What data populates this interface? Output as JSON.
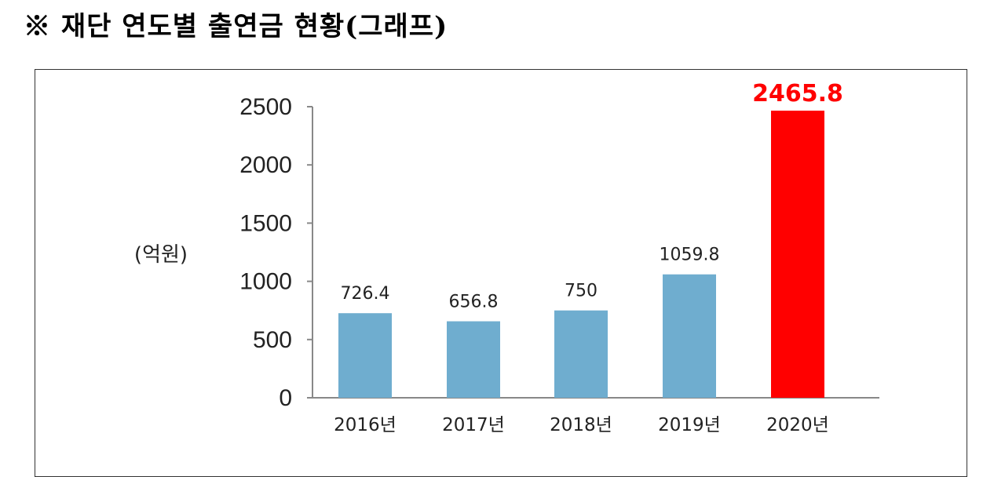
{
  "header": {
    "title": "※ 재단 연도별 출연금 현황(그래프)"
  },
  "colors": {
    "bar_default": "#6fadcf",
    "bar_highlight": "#ff0000",
    "highlight_label": "#ff0000"
  },
  "chart_data": {
    "type": "bar",
    "title": "",
    "ylabel": "(억원)",
    "xlabel": "",
    "ylim": [
      0,
      2500
    ],
    "yticks": [
      "2500",
      "2000",
      "1500",
      "1000",
      "500",
      "0"
    ],
    "categories": [
      "2016년",
      "2017년",
      "2018년",
      "2019년",
      "2020년"
    ],
    "values": [
      726.4,
      656.8,
      750,
      1059.8,
      2465.8
    ],
    "value_labels": [
      "726.4",
      "656.8",
      "750",
      "1059.8",
      "2465.8"
    ],
    "highlight_index": 4,
    "grid": false
  }
}
